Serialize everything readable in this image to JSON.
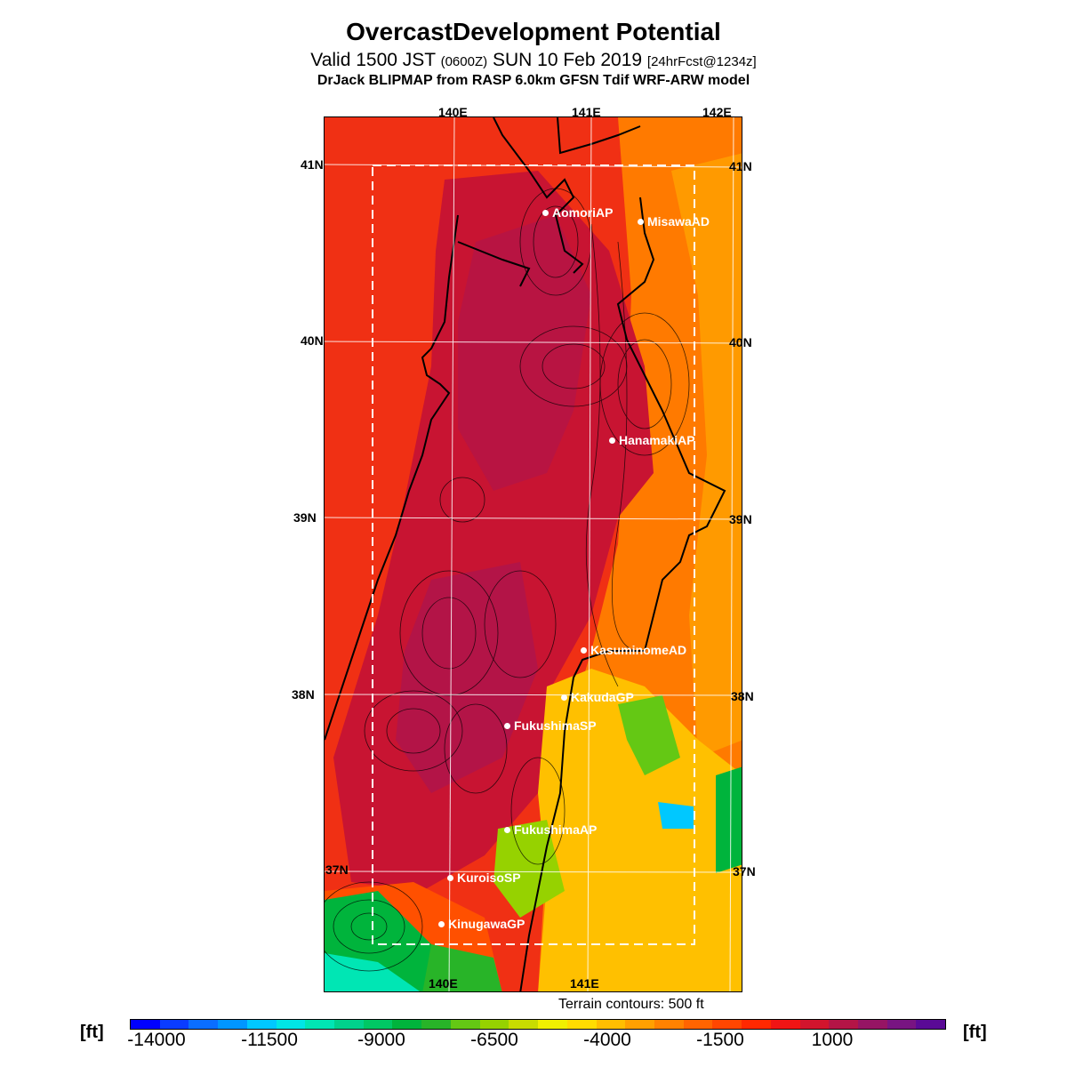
{
  "header": {
    "title": "OvercastDevelopment Potential",
    "subtitle_main": "Valid 1500 JST",
    "subtitle_zulu": "(0600Z)",
    "subtitle_date": "SUN 10 Feb 2019",
    "subtitle_fcst": "[24hrFcst@1234z]",
    "model_line": "DrJack BLIPMAP from RASP 6.0km GFSN Tdif WRF-ARW model"
  },
  "map": {
    "lon_labels_top": [
      "140E",
      "141E",
      "142E"
    ],
    "lon_labels_bottom": [
      "140E",
      "141E"
    ],
    "lat_labels": [
      "41N",
      "40N",
      "39N",
      "38N",
      "37N"
    ],
    "places": [
      {
        "name": "AomoriAP"
      },
      {
        "name": "MisawaAD"
      },
      {
        "name": "HanamakiAP"
      },
      {
        "name": "KasuminomeAD"
      },
      {
        "name": "KakudaGP"
      },
      {
        "name": "FukushimaSP"
      },
      {
        "name": "FukushimaAP"
      },
      {
        "name": "KuroisoSP"
      },
      {
        "name": "KinugawaGP"
      }
    ],
    "terrain_note": "Terrain contours: 500 ft"
  },
  "colorbar": {
    "unit": "[ft]",
    "tick_labels": [
      "-14000",
      "-11500",
      "-9000",
      "-6500",
      "-4000",
      "-1500",
      "1000"
    ],
    "colors": [
      "#0000ff",
      "#0a3cff",
      "#0a6eff",
      "#0096ff",
      "#00c8ff",
      "#00e6e6",
      "#00e6b4",
      "#00d28c",
      "#00c864",
      "#00b43c",
      "#28b428",
      "#64c814",
      "#96d200",
      "#c8dc00",
      "#f0f000",
      "#ffdc00",
      "#ffbe00",
      "#ffa000",
      "#ff8200",
      "#ff6400",
      "#ff4600",
      "#ff2800",
      "#f01414",
      "#d2142d",
      "#b41446",
      "#961464",
      "#781482",
      "#5a0a96"
    ]
  }
}
